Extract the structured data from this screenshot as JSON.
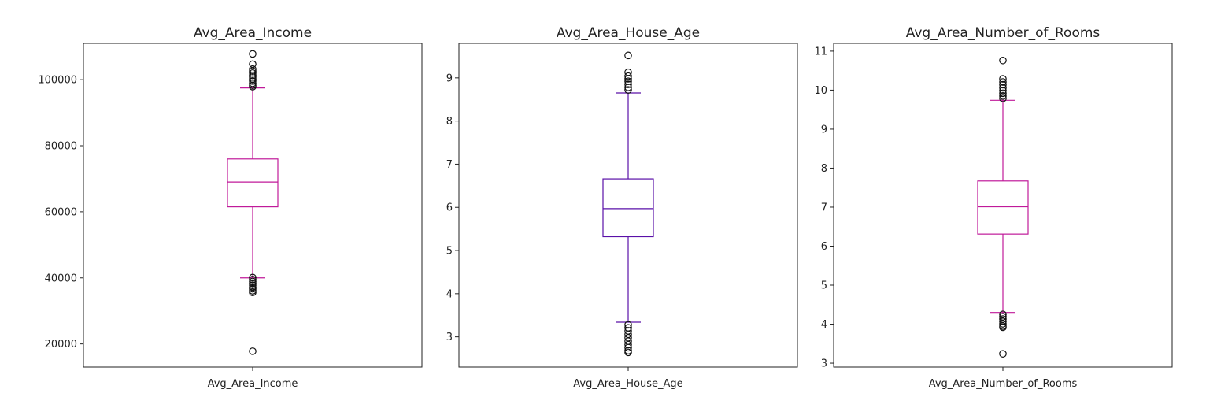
{
  "chart_data": [
    {
      "type": "box",
      "title": "Avg_Area_Income",
      "categories": [
        "Avg_Area_Income"
      ],
      "color": "#c01a9a",
      "ylim": [
        13000,
        111000
      ],
      "yticks": [
        20000,
        40000,
        60000,
        80000,
        100000
      ],
      "ytick_labels": [
        "20000",
        "40000",
        "60000",
        "80000",
        "100000"
      ],
      "box": {
        "whisker_low": 40000,
        "q1": 61500,
        "median": 69000,
        "q3": 76000,
        "whisker_high": 97500
      },
      "outliers": [
        107800,
        104700,
        103200,
        102600,
        102000,
        101300,
        100800,
        100200,
        99600,
        98900,
        98300,
        97900,
        40100,
        39500,
        38900,
        38400,
        37800,
        37200,
        36700,
        36100,
        35600,
        17800
      ]
    },
    {
      "type": "box",
      "title": "Avg_Area_House_Age",
      "categories": [
        "Avg_Area_House_Age"
      ],
      "color": "#5a10a8",
      "ylim": [
        2.3,
        9.8
      ],
      "yticks": [
        3,
        4,
        5,
        6,
        7,
        8,
        9
      ],
      "ytick_labels": [
        "3",
        "4",
        "5",
        "6",
        "7",
        "8",
        "9"
      ],
      "box": {
        "whisker_low": 3.34,
        "q1": 5.32,
        "median": 5.97,
        "q3": 6.66,
        "whisker_high": 8.65
      },
      "outliers": [
        9.52,
        9.13,
        9.04,
        8.98,
        8.92,
        8.85,
        8.78,
        8.72,
        3.28,
        3.21,
        3.14,
        3.06,
        2.98,
        2.9,
        2.82,
        2.75,
        2.68,
        2.64
      ]
    },
    {
      "type": "box",
      "title": "Avg_Area_Number_of_Rooms",
      "categories": [
        "Avg_Area_Number_of_Rooms"
      ],
      "color": "#c01a9a",
      "ylim": [
        2.9,
        11.2
      ],
      "yticks": [
        3,
        4,
        5,
        6,
        7,
        8,
        9,
        10,
        11
      ],
      "ytick_labels": [
        "3",
        "4",
        "5",
        "6",
        "7",
        "8",
        "9",
        "10",
        "11"
      ],
      "box": {
        "whisker_low": 4.3,
        "q1": 6.31,
        "median": 7.01,
        "q3": 7.67,
        "whisker_high": 9.74
      },
      "outliers": [
        10.76,
        10.29,
        10.21,
        10.14,
        10.06,
        9.99,
        9.92,
        9.85,
        9.79,
        4.25,
        4.19,
        4.13,
        4.07,
        4.01,
        3.95,
        3.92,
        3.24
      ]
    }
  ]
}
